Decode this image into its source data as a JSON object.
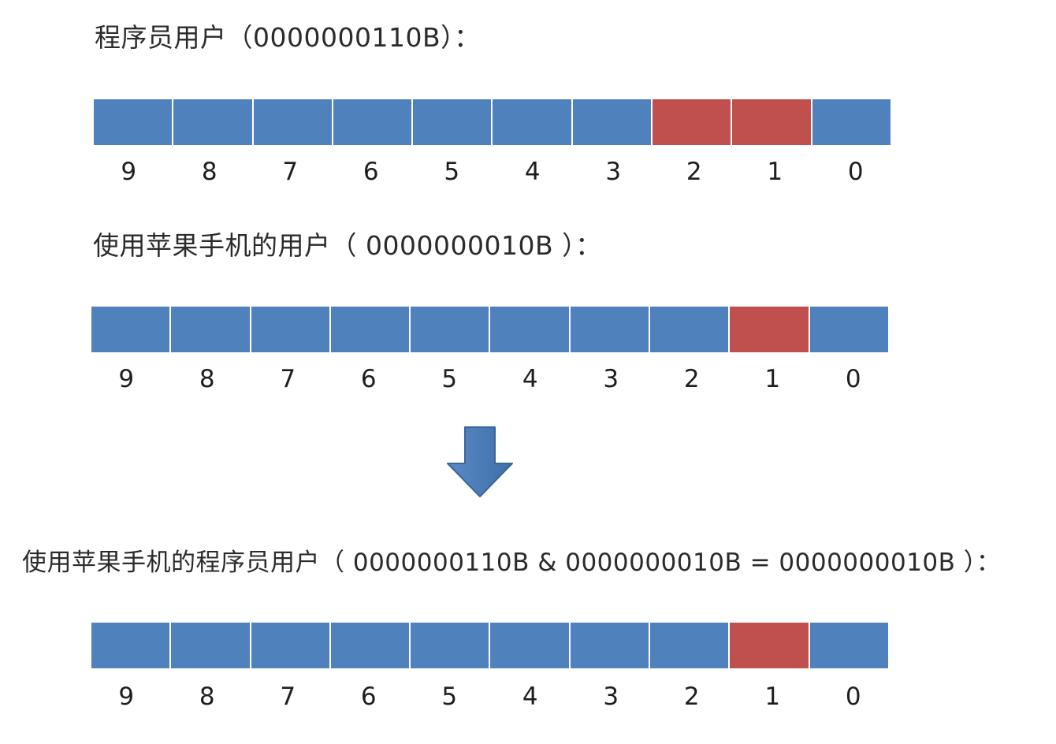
{
  "sections": [
    {
      "caption": "程序员用户（0000000110B）：",
      "bits": [
        0,
        0,
        0,
        0,
        0,
        0,
        0,
        1,
        1,
        0
      ],
      "labels": [
        "9",
        "8",
        "7",
        "6",
        "5",
        "4",
        "3",
        "2",
        "1",
        "0"
      ]
    },
    {
      "caption": "使用苹果手机的用户（ 0000000010B ）：",
      "bits": [
        0,
        0,
        0,
        0,
        0,
        0,
        0,
        0,
        1,
        0
      ],
      "labels": [
        "9",
        "8",
        "7",
        "6",
        "5",
        "4",
        "3",
        "2",
        "1",
        "0"
      ]
    },
    {
      "caption": "使用苹果手机的程序员用户（ 0000000110B & 0000000010B = 0000000010B ）：",
      "bits": [
        0,
        0,
        0,
        0,
        0,
        0,
        0,
        0,
        1,
        0
      ],
      "labels": [
        "9",
        "8",
        "7",
        "6",
        "5",
        "4",
        "3",
        "2",
        "1",
        "0"
      ]
    }
  ],
  "colors": {
    "bit_off": "#4f81bd",
    "bit_on": "#c0504d",
    "arrow": "#4f81bd"
  },
  "arrow_icon": "down-arrow-icon"
}
